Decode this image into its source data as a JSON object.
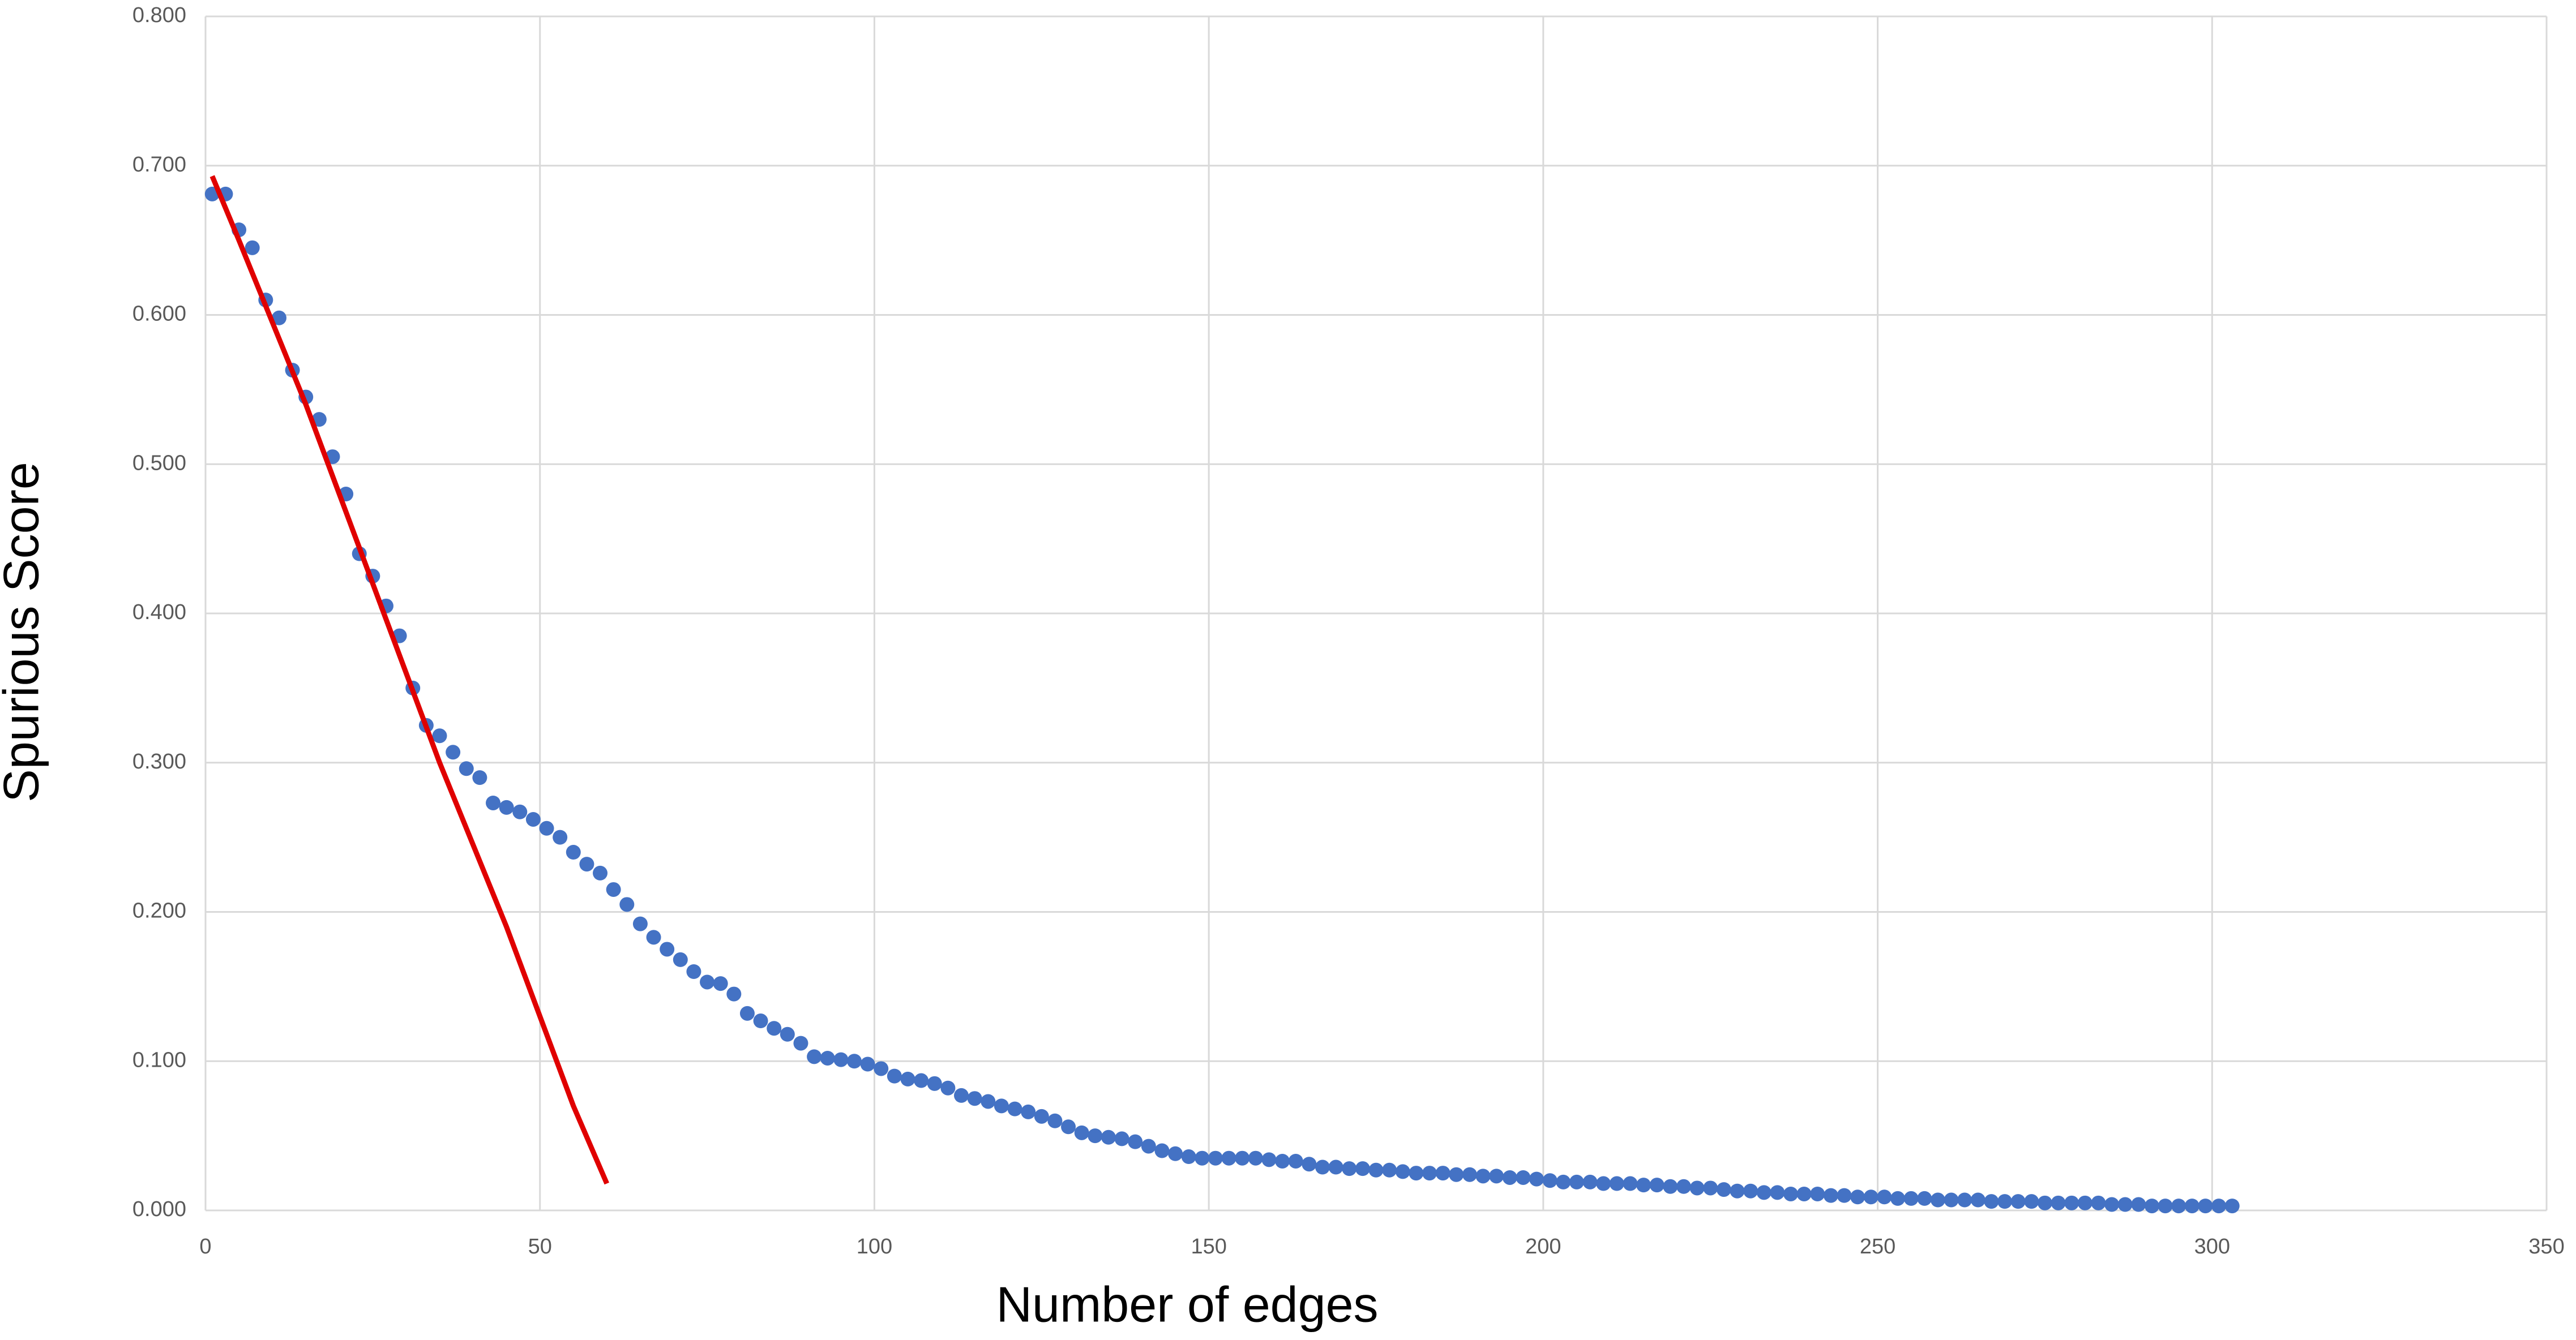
{
  "chart_data": {
    "type": "scatter",
    "x_label": "Number of edges",
    "y_label": "Spurious Score",
    "xlim": [
      0,
      350
    ],
    "xticks": [
      0,
      50,
      100,
      150,
      200,
      250,
      300,
      350
    ],
    "ylim": [
      0,
      0.8
    ],
    "yticks": [
      {
        "value": 0,
        "label": "0.000"
      },
      {
        "value": 0.1,
        "label": "0.100"
      },
      {
        "value": 0.2,
        "label": "0.200"
      },
      {
        "value": 0.3,
        "label": "0.300"
      },
      {
        "value": 0.4,
        "label": "0.400"
      },
      {
        "value": 0.5,
        "label": "0.500"
      },
      {
        "value": 0.6,
        "label": "0.600"
      },
      {
        "value": 0.7,
        "label": "0.700"
      },
      {
        "value": 0.8,
        "label": "0.800"
      }
    ],
    "grid": true,
    "series": [
      {
        "mode": "markers",
        "color": "#4472c4",
        "x": [
          1,
          3,
          5,
          7,
          9,
          11,
          13,
          15,
          17,
          19,
          21,
          23,
          25,
          27,
          29,
          31,
          33,
          35,
          37,
          39,
          41,
          43,
          45,
          47,
          49,
          51,
          53,
          55,
          57,
          59,
          61,
          63,
          65,
          67,
          69,
          71,
          73,
          75,
          77,
          79,
          81,
          83,
          85,
          87,
          89,
          91,
          93,
          95,
          97,
          99,
          101,
          103,
          105,
          107,
          109,
          111,
          113,
          115,
          117,
          119,
          121,
          123,
          125,
          127,
          129,
          131,
          133,
          135,
          137,
          139,
          141,
          143,
          145,
          147,
          149,
          151,
          153,
          155,
          157,
          159,
          161,
          163,
          165,
          167,
          169,
          171,
          173,
          175,
          177,
          179,
          181,
          183,
          185,
          187,
          189,
          191,
          193,
          195,
          197,
          199,
          201,
          203,
          205,
          207,
          209,
          211,
          213,
          215,
          217,
          219,
          221,
          223,
          225,
          227,
          229,
          231,
          233,
          235,
          237,
          239,
          241,
          243,
          245,
          247,
          249,
          251,
          253,
          255,
          257,
          259,
          261,
          263,
          265,
          267,
          269,
          271,
          273,
          275,
          277,
          279,
          281,
          283,
          285,
          287,
          289,
          291,
          293,
          295,
          297,
          299,
          301,
          303
        ],
        "values": [
          0.681,
          0.681,
          0.657,
          0.645,
          0.61,
          0.598,
          0.563,
          0.545,
          0.53,
          0.505,
          0.48,
          0.44,
          0.425,
          0.405,
          0.385,
          0.35,
          0.325,
          0.318,
          0.307,
          0.296,
          0.29,
          0.273,
          0.27,
          0.267,
          0.262,
          0.256,
          0.25,
          0.24,
          0.232,
          0.226,
          0.215,
          0.205,
          0.192,
          0.183,
          0.175,
          0.168,
          0.16,
          0.153,
          0.152,
          0.145,
          0.132,
          0.127,
          0.122,
          0.118,
          0.112,
          0.103,
          0.102,
          0.101,
          0.1,
          0.098,
          0.095,
          0.09,
          0.088,
          0.087,
          0.085,
          0.082,
          0.077,
          0.075,
          0.073,
          0.07,
          0.068,
          0.066,
          0.063,
          0.06,
          0.056,
          0.052,
          0.05,
          0.049,
          0.048,
          0.046,
          0.043,
          0.04,
          0.038,
          0.036,
          0.035,
          0.035,
          0.035,
          0.035,
          0.035,
          0.034,
          0.033,
          0.033,
          0.031,
          0.029,
          0.029,
          0.028,
          0.028,
          0.027,
          0.027,
          0.026,
          0.025,
          0.025,
          0.025,
          0.024,
          0.024,
          0.023,
          0.023,
          0.022,
          0.022,
          0.021,
          0.02,
          0.019,
          0.019,
          0.019,
          0.018,
          0.018,
          0.018,
          0.017,
          0.017,
          0.016,
          0.016,
          0.015,
          0.015,
          0.014,
          0.013,
          0.013,
          0.012,
          0.012,
          0.011,
          0.011,
          0.011,
          0.01,
          0.01,
          0.009,
          0.009,
          0.009,
          0.008,
          0.008,
          0.008,
          0.007,
          0.007,
          0.007,
          0.007,
          0.006,
          0.006,
          0.006,
          0.006,
          0.005,
          0.005,
          0.005,
          0.005,
          0.005,
          0.004,
          0.004,
          0.004,
          0.003,
          0.003,
          0.003,
          0.003,
          0.003,
          0.003,
          0.003
        ]
      },
      {
        "mode": "line",
        "color": "#e00000",
        "x": [
          1,
          5,
          10,
          15,
          20,
          25,
          30,
          35,
          40,
          45,
          50,
          55,
          60
        ],
        "values": [
          0.693,
          0.65,
          0.595,
          0.54,
          0.48,
          0.42,
          0.36,
          0.3,
          0.245,
          0.19,
          0.13,
          0.07,
          0.018
        ]
      }
    ]
  }
}
